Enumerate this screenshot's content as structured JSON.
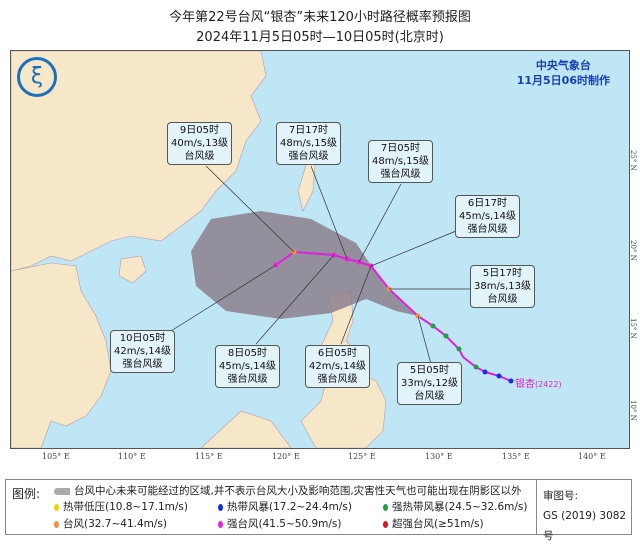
{
  "header": {
    "title": "今年第22号台风“银杏”未来120小时路径概率预报图",
    "subtitle": "2024年11月5日05时—10日05时(北京时)"
  },
  "agency": {
    "name": "中央气象台",
    "made": "11月5日06时制作"
  },
  "map": {
    "longitude_labels": [
      "105° E",
      "110° E",
      "115° E",
      "120° E",
      "125° E",
      "130° E",
      "135° E",
      "140° E"
    ],
    "latitude_labels": [
      "25° N",
      "20° N",
      "15° N",
      "10° N"
    ],
    "storm_name": "银杏",
    "storm_id": "(2422)",
    "forecast_points": [
      {
        "time": "5日05时",
        "wind": "33m/s,12级",
        "level": "台风级"
      },
      {
        "time": "5日17时",
        "wind": "38m/s,13级",
        "level": "台风级"
      },
      {
        "time": "6日05时",
        "wind": "42m/s,14级",
        "level": "强台风级"
      },
      {
        "time": "6日17时",
        "wind": "45m/s,14级",
        "level": "强台风级"
      },
      {
        "time": "7日05时",
        "wind": "48m/s,15级",
        "level": "强台风级"
      },
      {
        "time": "7日17时",
        "wind": "48m/s,15级",
        "level": "强台风级"
      },
      {
        "time": "8日05时",
        "wind": "45m/s,14级",
        "level": "强台风级"
      },
      {
        "time": "9日05时",
        "wind": "40m/s,13级",
        "level": "台风级"
      },
      {
        "time": "10日05时",
        "wind": "42m/s,14级",
        "level": "强台风级"
      }
    ],
    "colors": {
      "sea": "#bfe6f5",
      "land": "#f6e7c9",
      "cone": "#8c7f8c",
      "track": "#e020e0"
    }
  },
  "legend": {
    "title": "图例:",
    "cone_text": "台风中心未来可能经过的区域,并不表示台风大小及影响范围,灾害性天气也可能出现在阴影区以外",
    "items": [
      {
        "label": "热带低压(10.8~17.1m/s)",
        "color": "#f0d000"
      },
      {
        "label": "热带风暴(17.2~24.4m/s)",
        "color": "#1030e0"
      },
      {
        "label": "强热带风暴(24.5~32.6m/s)",
        "color": "#20a040"
      },
      {
        "label": "台风(32.7~41.4m/s)",
        "color": "#f09040"
      },
      {
        "label": "强台风(41.5~50.9m/s)",
        "color": "#f020e0"
      },
      {
        "label": "超强台风(≥51m/s)",
        "color": "#e01020"
      }
    ],
    "approval_label": "审图号:",
    "approval_no": "GS (2019) 3082号"
  }
}
